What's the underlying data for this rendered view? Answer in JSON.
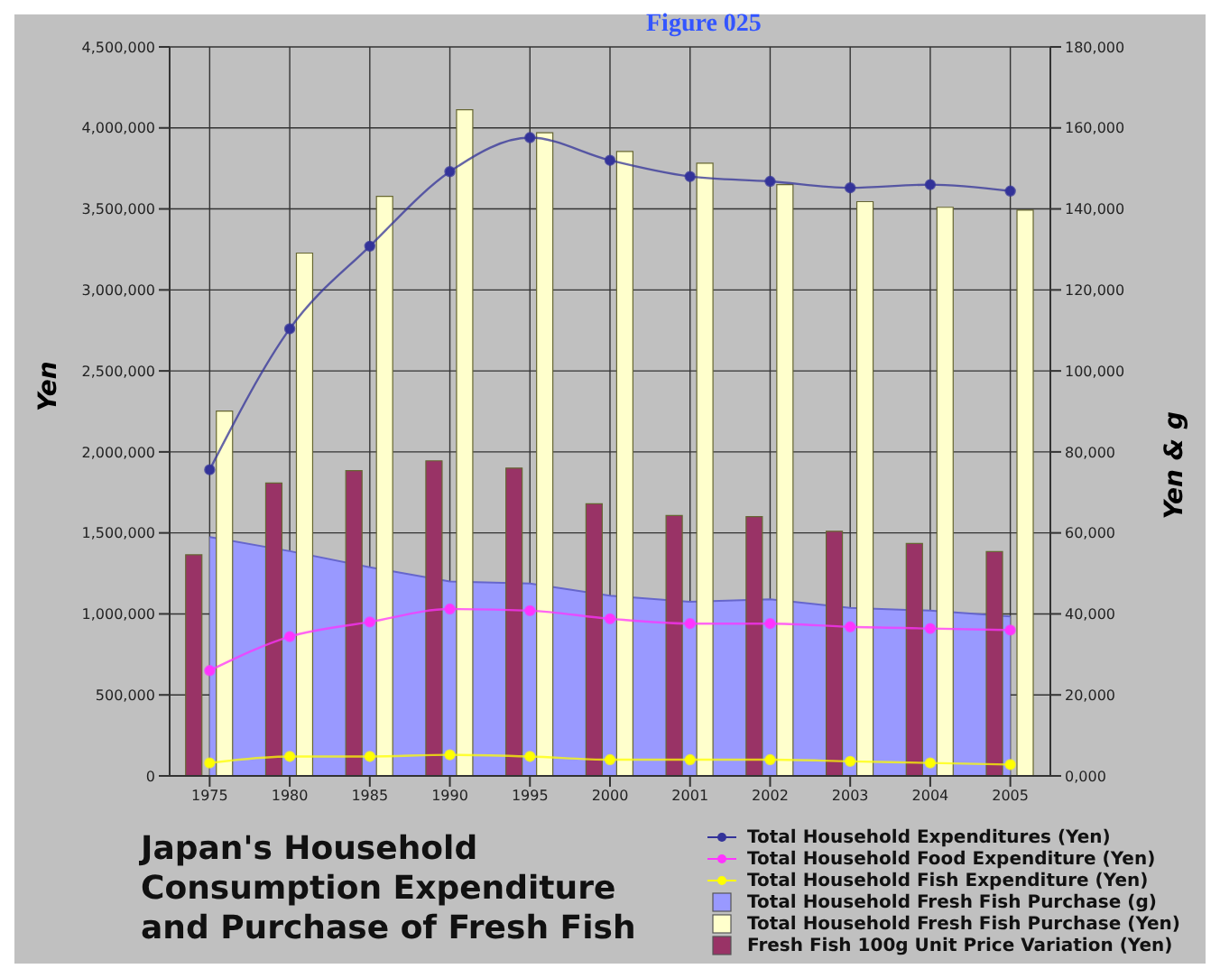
{
  "chart_data": {
    "type": "bar",
    "title": "Japan's Household Consumption Expenditure and Purchase of Fresh Fish",
    "annotations": [
      "Figure 025"
    ],
    "ylabel": "Yen",
    "y2label": "Yen & g",
    "categories": [
      "1975",
      "1980",
      "1985",
      "1990",
      "1995",
      "2000",
      "2001",
      "2002",
      "2003",
      "2004",
      "2005"
    ],
    "series": [
      {
        "name": "Total Household Expenditures (Yen)",
        "type": "line",
        "color": "#333399",
        "values": [
          1890000,
          2760000,
          3270000,
          3730000,
          3940000,
          3800000,
          3700000,
          3670000,
          3630000,
          3650000,
          3610000
        ]
      },
      {
        "name": "Total Household Food Expenditure (Yen)",
        "type": "line",
        "color": "#ff33ff",
        "values": [
          650000,
          860000,
          950000,
          1030000,
          1020000,
          970000,
          940000,
          940000,
          920000,
          910000,
          900000
        ]
      },
      {
        "name": "Total Household Fish Expenditure (Yen)",
        "type": "line",
        "color": "#ffff00",
        "values": [
          80000,
          120000,
          120000,
          130000,
          120000,
          100000,
          100000,
          100000,
          90000,
          80000,
          70000
        ]
      },
      {
        "name": "Total Household Fresh Fish Purchase (g)",
        "type": "area",
        "axis": "y2",
        "marker": "none",
        "color": "#9999ff",
        "values": [
          59000,
          55500,
          51500,
          48000,
          47500,
          44500,
          43000,
          43600,
          41500,
          40800,
          39400
        ]
      },
      {
        "name": "Total Household Fresh Fish Purchase (Yen)",
        "type": "bar",
        "axis": "y2",
        "color": "#ffffcc",
        "values": [
          90100,
          129100,
          143100,
          164500,
          158800,
          154200,
          151300,
          146000,
          141800,
          140400,
          139700
        ]
      },
      {
        "name": "Fresh Fish 100g Unit Price Variation (Yen)",
        "type": "bar",
        "axis": "y2",
        "color": "#993366",
        "values": [
          54600,
          72300,
          75400,
          77800,
          76000,
          67200,
          64300,
          64000,
          60400,
          57400,
          55400
        ]
      }
    ],
    "ylim": [
      0,
      4500000
    ],
    "yticks": [
      {
        "value": 0,
        "label": "0"
      },
      {
        "value": 500000,
        "label": "500,000"
      },
      {
        "value": 1000000,
        "label": "1,000,000"
      },
      {
        "value": 1500000,
        "label": "1,500,000"
      },
      {
        "value": 2000000,
        "label": "2,000,000"
      },
      {
        "value": 2500000,
        "label": "2,500,000"
      },
      {
        "value": 3000000,
        "label": "3,000,000"
      },
      {
        "value": 3500000,
        "label": "3,500,000"
      },
      {
        "value": 4000000,
        "label": "4,000,000"
      },
      {
        "value": 4500000,
        "label": "4,500,000"
      }
    ],
    "y2lim": [
      0,
      180000
    ],
    "y2ticks": [
      {
        "value": 0,
        "label": "0,000"
      },
      {
        "value": 20000,
        "label": "20,000"
      },
      {
        "value": 40000,
        "label": "40,000"
      },
      {
        "value": 60000,
        "label": "60,000"
      },
      {
        "value": 80000,
        "label": "80,000"
      },
      {
        "value": 100000,
        "label": "100,000"
      },
      {
        "value": 120000,
        "label": "120,000"
      },
      {
        "value": 140000,
        "label": "140,000"
      },
      {
        "value": 160000,
        "label": "160,000"
      },
      {
        "value": 180000,
        "label": "180,000"
      }
    ],
    "grid": true,
    "legend": "bottom right",
    "marker": "circle"
  }
}
